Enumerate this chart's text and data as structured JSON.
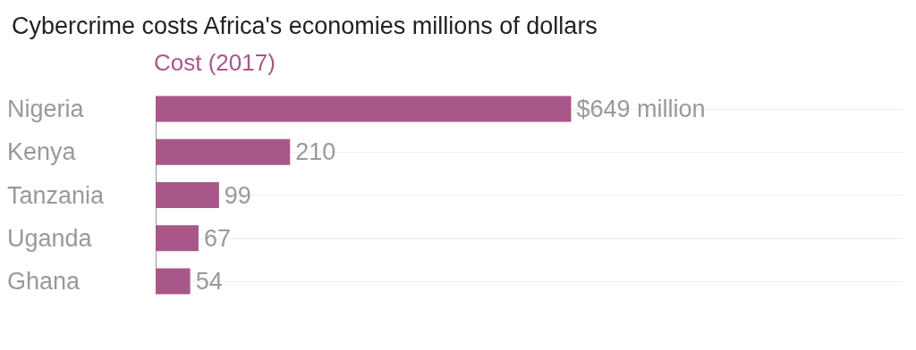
{
  "chart_data": {
    "type": "bar",
    "orientation": "horizontal",
    "title": "Cybercrime costs Africa's economies millions of dollars",
    "categories": [
      "Nigeria",
      "Kenya",
      "Tanzania",
      "Uganda",
      "Ghana"
    ],
    "series": [
      {
        "name": "Cost (2017)",
        "color": "#a85788",
        "values": [
          649,
          210,
          99,
          67,
          54
        ],
        "value_labels": [
          "$649 million",
          "210",
          "99",
          "67",
          "54"
        ]
      }
    ],
    "legend": "top left",
    "grid": "y"
  }
}
